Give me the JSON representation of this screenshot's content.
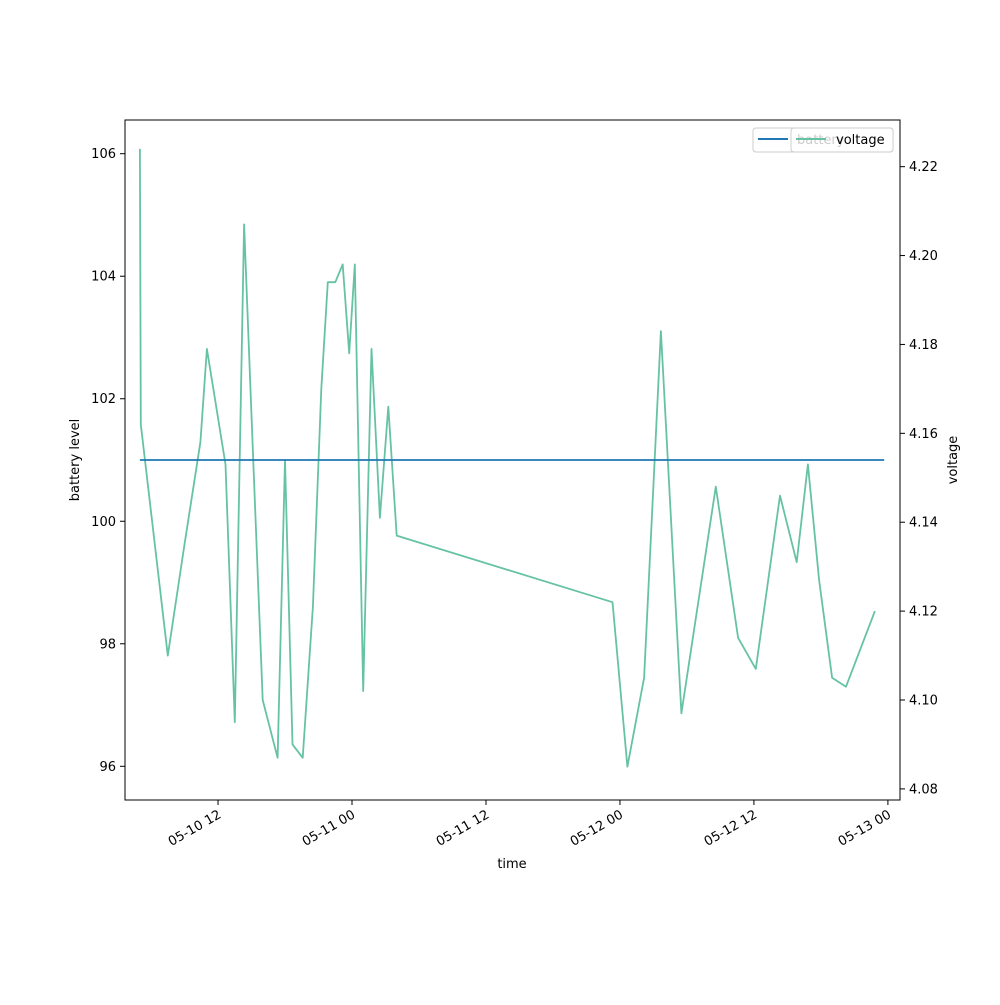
{
  "chart_data": {
    "type": "line",
    "xlabel": "time",
    "ylabel_left": "battery level",
    "ylabel_right": "voltage",
    "x_axis": {
      "type": "date",
      "range": [
        "2017-05-10T03:40",
        "2017-05-13T01:05"
      ],
      "ticks": [
        {
          "value": "2017-05-10T12:00",
          "label": "05-10 12"
        },
        {
          "value": "2017-05-11T00:00",
          "label": "05-11 00"
        },
        {
          "value": "2017-05-11T12:00",
          "label": "05-11 12"
        },
        {
          "value": "2017-05-12T00:00",
          "label": "05-12 00"
        },
        {
          "value": "2017-05-12T12:00",
          "label": "05-12 12"
        },
        {
          "value": "2017-05-13T00:00",
          "label": "05-13 00"
        }
      ]
    },
    "y_left": {
      "range": [
        95.45,
        106.55
      ],
      "ticks": [
        96,
        98,
        100,
        102,
        104,
        106
      ]
    },
    "y_right": {
      "range": [
        4.0775,
        4.2305
      ],
      "ticks": [
        4.08,
        4.1,
        4.12,
        4.14,
        4.16,
        4.18,
        4.2,
        4.22
      ]
    },
    "legend": {
      "placement": "top-right",
      "entries": [
        "battery",
        "voltage"
      ]
    },
    "grid": false,
    "series": [
      {
        "name": "battery",
        "axis": "left",
        "color": "#1f77b4",
        "x": [
          "2017-05-10T05:00",
          "2017-05-12T23:40"
        ],
        "values": [
          101,
          101
        ]
      },
      {
        "name": "voltage",
        "axis": "right",
        "color": "#66c2a5",
        "x": [
          "2017-05-10T05:00",
          "2017-05-10T05:05",
          "2017-05-10T07:30",
          "2017-05-10T09:00",
          "2017-05-10T10:25",
          "2017-05-10T11:00",
          "2017-05-10T12:40",
          "2017-05-10T13:30",
          "2017-05-10T14:20",
          "2017-05-10T15:10",
          "2017-05-10T16:00",
          "2017-05-10T17:20",
          "2017-05-10T18:00",
          "2017-05-10T18:40",
          "2017-05-10T19:35",
          "2017-05-10T20:30",
          "2017-05-10T21:15",
          "2017-05-10T21:50",
          "2017-05-10T22:30",
          "2017-05-10T23:10",
          "2017-05-10T23:45",
          "2017-05-11T00:15",
          "2017-05-11T01:00",
          "2017-05-11T01:45",
          "2017-05-11T02:30",
          "2017-05-11T03:15",
          "2017-05-11T04:00",
          "2017-05-11T23:20",
          "2017-05-12T00:40",
          "2017-05-12T02:10",
          "2017-05-12T03:40",
          "2017-05-12T05:30",
          "2017-05-12T08:35",
          "2017-05-12T10:35",
          "2017-05-12T12:10",
          "2017-05-12T14:20",
          "2017-05-12T15:50",
          "2017-05-12T16:50",
          "2017-05-12T17:50",
          "2017-05-12T19:00",
          "2017-05-12T20:15",
          "2017-05-12T22:50"
        ],
        "values": [
          4.224,
          4.162,
          4.11,
          4.135,
          4.158,
          4.179,
          4.153,
          4.095,
          4.207,
          4.153,
          4.1,
          4.087,
          4.154,
          4.09,
          4.087,
          4.121,
          4.17,
          4.194,
          4.194,
          4.198,
          4.178,
          4.198,
          4.102,
          4.179,
          4.141,
          4.166,
          4.137,
          4.122,
          4.085,
          4.105,
          4.183,
          4.097,
          4.148,
          4.114,
          4.107,
          4.146,
          4.131,
          4.153,
          4.127,
          4.105,
          4.103,
          4.12
        ]
      }
    ]
  }
}
